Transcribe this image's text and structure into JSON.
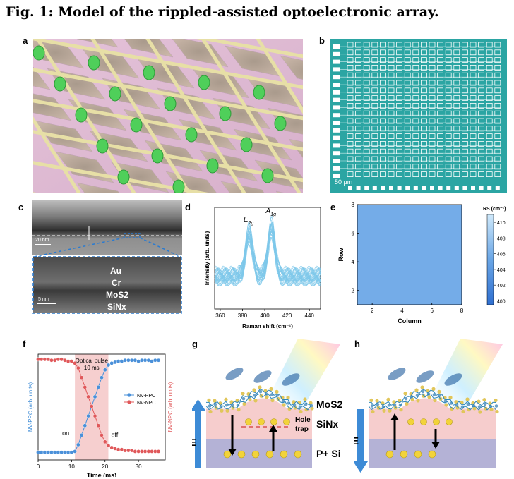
{
  "figure": {
    "title": "Fig. 1: Model of the rippled-assisted optoelectronic array."
  },
  "panels": {
    "a": {
      "label": "a"
    },
    "b": {
      "label": "b",
      "scale_bar": "50 μm"
    },
    "c": {
      "label": "c",
      "scale_top": "20 nm",
      "scale_bottom": "5 nm",
      "layers": [
        "Au",
        "Cr",
        "MoS2",
        "SiNx"
      ]
    },
    "d": {
      "label": "d"
    },
    "e": {
      "label": "e"
    },
    "f": {
      "label": "f",
      "pulse_label_1": "Optical pulse",
      "pulse_label_2": "10 ms",
      "on_label": "on",
      "off_label": "off"
    },
    "g": {
      "label": "g",
      "labels": {
        "mos2": "MoS2",
        "sinx": "SiNx",
        "psi": "P+ Si",
        "hole": "Hole",
        "trap": "trap",
        "field": "E"
      }
    },
    "h": {
      "label": "h",
      "field": "E"
    }
  },
  "chart_data": [
    {
      "id": "d",
      "type": "line",
      "xlabel": "Raman shift (cm⁻¹)",
      "ylabel": "Intensity (arb. units)",
      "xlim": [
        355,
        450
      ],
      "xticks": [
        360,
        380,
        400,
        420,
        440
      ],
      "peaks": [
        {
          "name": "E2g",
          "x": 386
        },
        {
          "name": "A1g",
          "x": 406
        }
      ],
      "series_color": "#7ec8ea",
      "n_spectra": 30
    },
    {
      "id": "e",
      "type": "heatmap",
      "xlabel": "Column",
      "ylabel": "Row",
      "xlim": [
        1,
        8
      ],
      "ylim": [
        1,
        8
      ],
      "xticks": [
        2,
        4,
        6,
        8
      ],
      "yticks": [
        2,
        4,
        6,
        8
      ],
      "colorbar_title": "RS (cm⁻¹)",
      "colorbar_ticks": [
        400,
        402,
        404,
        406,
        408,
        410
      ],
      "colorbar_range": [
        399.5,
        411
      ],
      "value": 406.5
    },
    {
      "id": "f",
      "type": "line",
      "xlabel": "Time (ms)",
      "ylabel_left": "NV-PPC (arb. units)",
      "ylabel_right": "NV-NPC (arb. units)",
      "xlim": [
        0,
        38
      ],
      "xticks": [
        0,
        10,
        20,
        30
      ],
      "pulse": [
        11,
        21
      ],
      "series": [
        {
          "name": "NV-PPC",
          "color": "#4a90d9",
          "x": [
            0,
            1,
            2,
            3,
            4,
            5,
            6,
            7,
            8,
            9,
            10,
            11,
            12,
            13,
            14,
            15,
            16,
            17,
            18,
            19,
            20,
            21,
            22,
            23,
            24,
            25,
            26,
            27,
            28,
            29,
            30,
            31,
            32,
            33,
            34,
            35,
            36
          ],
          "y": [
            0.02,
            0.02,
            0.02,
            0.02,
            0.02,
            0.02,
            0.02,
            0.02,
            0.02,
            0.02,
            0.02,
            0.03,
            0.1,
            0.2,
            0.3,
            0.4,
            0.5,
            0.6,
            0.7,
            0.8,
            0.88,
            0.93,
            0.95,
            0.96,
            0.97,
            0.97,
            0.98,
            0.98,
            0.98,
            0.98,
            0.97,
            0.98,
            0.98,
            0.98,
            0.97,
            0.98,
            0.98
          ]
        },
        {
          "name": "NV-NPC",
          "color": "#e0585a",
          "x": [
            0,
            1,
            2,
            3,
            4,
            5,
            6,
            7,
            8,
            9,
            10,
            11,
            12,
            13,
            14,
            15,
            16,
            17,
            18,
            19,
            20,
            21,
            22,
            23,
            24,
            25,
            26,
            27,
            28,
            29,
            30,
            31,
            32,
            33,
            34,
            35,
            36
          ],
          "y": [
            0.99,
            0.99,
            0.99,
            0.99,
            0.98,
            0.98,
            0.99,
            0.99,
            0.98,
            0.97,
            0.97,
            0.95,
            0.9,
            0.8,
            0.7,
            0.6,
            0.5,
            0.4,
            0.3,
            0.2,
            0.13,
            0.09,
            0.07,
            0.06,
            0.05,
            0.05,
            0.04,
            0.04,
            0.04,
            0.03,
            0.03,
            0.03,
            0.03,
            0.03,
            0.03,
            0.03,
            0.03
          ]
        }
      ]
    }
  ]
}
